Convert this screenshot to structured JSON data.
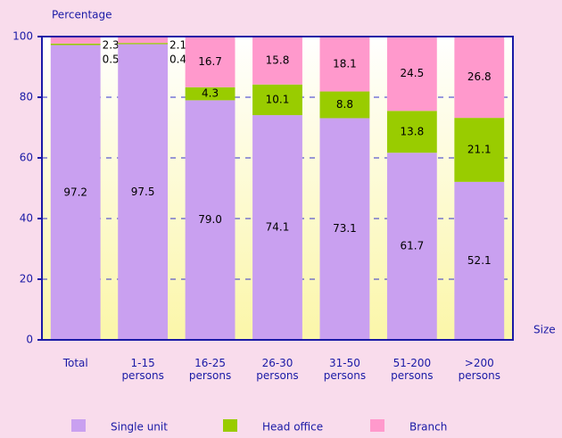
{
  "chart_data": {
    "type": "stacked_bar",
    "y_label": "Percentage",
    "x_label": "Size",
    "categories": [
      "Total",
      "1-15 persons",
      "16-25 persons",
      "26-30 persons",
      "31-50 persons",
      "51-200 persons",
      ">200 persons"
    ],
    "series": [
      {
        "name": "Single unit",
        "color": "#c9a0f0",
        "values": [
          97.2,
          97.5,
          79.0,
          74.1,
          73.1,
          61.7,
          52.1
        ],
        "value_labels": [
          "97.2",
          "97.5",
          "79.0",
          "74.1",
          "73.1",
          "61.7",
          "52.1"
        ]
      },
      {
        "name": "Head office",
        "color": "#99cc00",
        "values": [
          0.5,
          0.4,
          4.3,
          10.1,
          8.8,
          13.8,
          21.1
        ],
        "value_labels": [
          "0.5",
          "0.4",
          "4.3",
          "10.1",
          "8.8",
          "13.8",
          "21.1"
        ]
      },
      {
        "name": "Branch",
        "color": "#ff99cc",
        "values": [
          2.3,
          2.1,
          16.7,
          15.8,
          18.1,
          24.5,
          26.8
        ],
        "value_labels": [
          "2.3",
          "2.1",
          "16.7",
          "15.8",
          "18.1",
          "24.5",
          "26.8"
        ]
      }
    ],
    "ylim": [
      0,
      100
    ],
    "yticks": [
      0,
      20,
      40,
      60,
      80,
      100
    ],
    "grid": true
  }
}
